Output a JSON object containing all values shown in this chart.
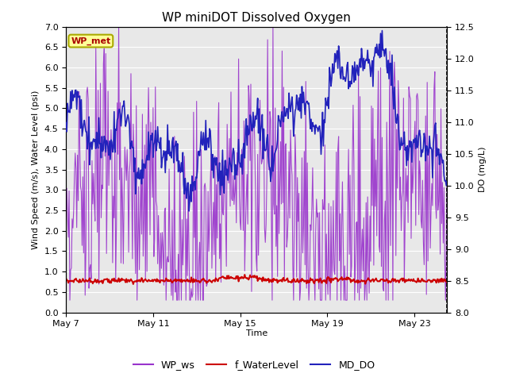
{
  "title": "WP miniDOT Dissolved Oxygen",
  "xlabel": "Time",
  "ylabel_left": "Wind Speed (m/s), Water Level (psi)",
  "ylabel_right": "DO (mg/L)",
  "xlim_days": [
    0,
    17.5
  ],
  "ylim_left": [
    0.0,
    7.0
  ],
  "ylim_right": [
    8.0,
    12.5
  ],
  "xtick_labels": [
    "May 7",
    "May 11",
    "May 15",
    "May 19",
    "May 23"
  ],
  "xtick_positions": [
    0,
    4,
    8,
    12,
    16
  ],
  "yticks_left": [
    0.0,
    0.5,
    1.0,
    1.5,
    2.0,
    2.5,
    3.0,
    3.5,
    4.0,
    4.5,
    5.0,
    5.5,
    6.0,
    6.5,
    7.0
  ],
  "yticks_right": [
    8.0,
    8.5,
    9.0,
    9.5,
    10.0,
    10.5,
    11.0,
    11.5,
    12.0,
    12.5
  ],
  "wp_ws_color": "#9933CC",
  "f_waterlevel_color": "#CC0000",
  "md_do_color": "#2222BB",
  "background_color": "#E8E8E8",
  "annotation_text": "WP_met",
  "annotation_box_color": "#FFFF99",
  "annotation_text_color": "#AA0000",
  "annotation_border_color": "#AAAA00",
  "legend_labels": [
    "WP_ws",
    "f_WaterLevel",
    "MD_DO"
  ],
  "legend_colors": [
    "#9933CC",
    "#CC0000",
    "#2222BB"
  ],
  "title_fontsize": 11,
  "axis_label_fontsize": 8,
  "tick_fontsize": 8,
  "legend_fontsize": 9
}
